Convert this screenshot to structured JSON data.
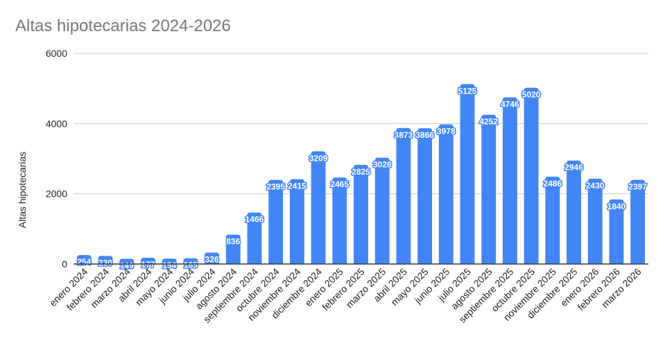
{
  "chart_data": {
    "type": "bar",
    "title": "Altas hipotecarias 2024-2026",
    "xlabel": "",
    "ylabel": "Altas hipotecarias",
    "ylim": [
      0,
      6000
    ],
    "yticks": [
      0,
      2000,
      4000,
      6000
    ],
    "grid": true,
    "legend": "none",
    "bar_color": "#4285F4",
    "categories": [
      "enero 2024",
      "febrero 2024",
      "marzo 2024",
      "abril 2024",
      "mayo 2024",
      "junio 2024",
      "julio 2024",
      "agosto 2024",
      "septiembre 2024",
      "octubre 2024",
      "noviembre 2024",
      "diciembre 2024",
      "enero 2025",
      "febrero 2025",
      "marzo 2025",
      "abril 2025",
      "mayo 2025",
      "junio 2025",
      "julio 2025",
      "agosto 2025",
      "septiembre 2025",
      "octubre 2025",
      "noviembre 2025",
      "diciembre 2025",
      "enero 2026",
      "febrero 2026",
      "marzo 2026"
    ],
    "values": [
      254,
      230,
      149,
      177,
      154,
      165,
      326,
      836,
      1466,
      2395,
      2415,
      3209,
      2465,
      2825,
      3028,
      3873,
      3866,
      3978,
      5125,
      4252,
      4746,
      5020,
      2486,
      2946,
      2430,
      1840,
      2397
    ]
  }
}
